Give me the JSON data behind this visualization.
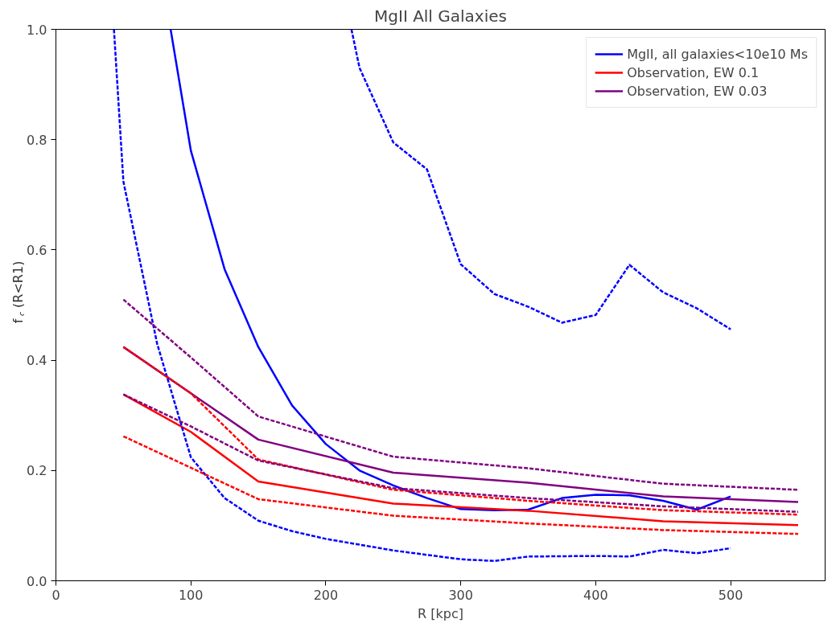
{
  "chart_data": {
    "type": "line",
    "title": "MgII All Galaxies",
    "xlabel": "R [kpc]",
    "ylabel": "f$_{c}$ (R<R1)",
    "xlim": [
      0,
      570
    ],
    "ylim": [
      0,
      1
    ],
    "xticks": [
      0,
      100,
      200,
      300,
      400,
      500
    ],
    "yticks": [
      {
        "value": 0,
        "label": "0.0"
      },
      {
        "value": 0.2,
        "label": "0.2"
      },
      {
        "value": 0.4,
        "label": "0.4"
      },
      {
        "value": 0.6,
        "label": "0.6"
      },
      {
        "value": 0.8,
        "label": "0.8"
      },
      {
        "value": 1,
        "label": "1.0"
      }
    ],
    "grid": false,
    "legend": "top right",
    "marker": "none",
    "series": [
      {
        "name": "MgII, all galaxies<10e10 Ms",
        "color": "#0000ff",
        "line_style": "solid",
        "x": [
          85,
          100,
          125,
          150,
          175,
          200,
          225,
          250,
          275,
          300,
          325,
          350,
          375,
          400,
          425,
          450,
          475,
          500
        ],
        "values": [
          1.0,
          0.78,
          0.565,
          0.424,
          0.318,
          0.248,
          0.2,
          0.173,
          0.15,
          0.13,
          0.128,
          0.129,
          0.15,
          0.156,
          0.155,
          0.145,
          0.129,
          0.153
        ]
      },
      {
        "color": "#0000ff",
        "line_style": "dashed",
        "x": [
          43,
          50,
          75,
          100,
          125,
          150,
          175,
          200,
          250,
          300,
          325,
          350,
          400,
          425,
          450,
          475,
          500
        ],
        "values": [
          1.0,
          0.724,
          0.43,
          0.224,
          0.15,
          0.109,
          0.09,
          0.076,
          0.055,
          0.039,
          0.036,
          0.044,
          0.045,
          0.044,
          0.056,
          0.05,
          0.059
        ]
      },
      {
        "color": "#0000ff",
        "line_style": "dashed",
        "x": [
          219,
          225,
          250,
          275,
          300,
          325,
          350,
          375,
          400,
          425,
          450,
          475,
          500
        ],
        "values": [
          1.0,
          0.93,
          0.795,
          0.746,
          0.574,
          0.52,
          0.497,
          0.468,
          0.482,
          0.573,
          0.523,
          0.494,
          0.456
        ]
      },
      {
        "name": "Observation, EW 0.1",
        "color": "#ff0000",
        "line_style": "solid",
        "x": [
          50,
          100,
          150,
          250,
          350,
          450,
          550
        ],
        "values": [
          0.338,
          0.27,
          0.18,
          0.14,
          0.127,
          0.108,
          0.101
        ]
      },
      {
        "color": "#ff0000",
        "line_style": "dashed",
        "x": [
          50,
          100,
          150,
          250,
          350,
          450,
          550
        ],
        "values": [
          0.424,
          0.34,
          0.22,
          0.165,
          0.145,
          0.128,
          0.12
        ]
      },
      {
        "color": "#ff0000",
        "line_style": "dashed",
        "x": [
          50,
          100,
          150,
          250,
          350,
          450,
          550
        ],
        "values": [
          0.262,
          0.205,
          0.148,
          0.118,
          0.104,
          0.092,
          0.085
        ]
      },
      {
        "name": "Observation, EW 0.03",
        "color": "#800080",
        "line_style": "solid",
        "x": [
          50,
          100,
          150,
          250,
          350,
          450,
          550
        ],
        "values": [
          0.424,
          0.34,
          0.256,
          0.196,
          0.178,
          0.153,
          0.143
        ]
      },
      {
        "color": "#800080",
        "line_style": "dashed",
        "x": [
          50,
          100,
          150,
          250,
          350,
          450,
          550
        ],
        "values": [
          0.51,
          0.405,
          0.298,
          0.225,
          0.204,
          0.176,
          0.165
        ]
      },
      {
        "color": "#800080",
        "line_style": "dashed",
        "x": [
          50,
          100,
          150,
          250,
          350,
          450,
          550
        ],
        "values": [
          0.338,
          0.28,
          0.218,
          0.168,
          0.15,
          0.135,
          0.125
        ]
      }
    ]
  }
}
